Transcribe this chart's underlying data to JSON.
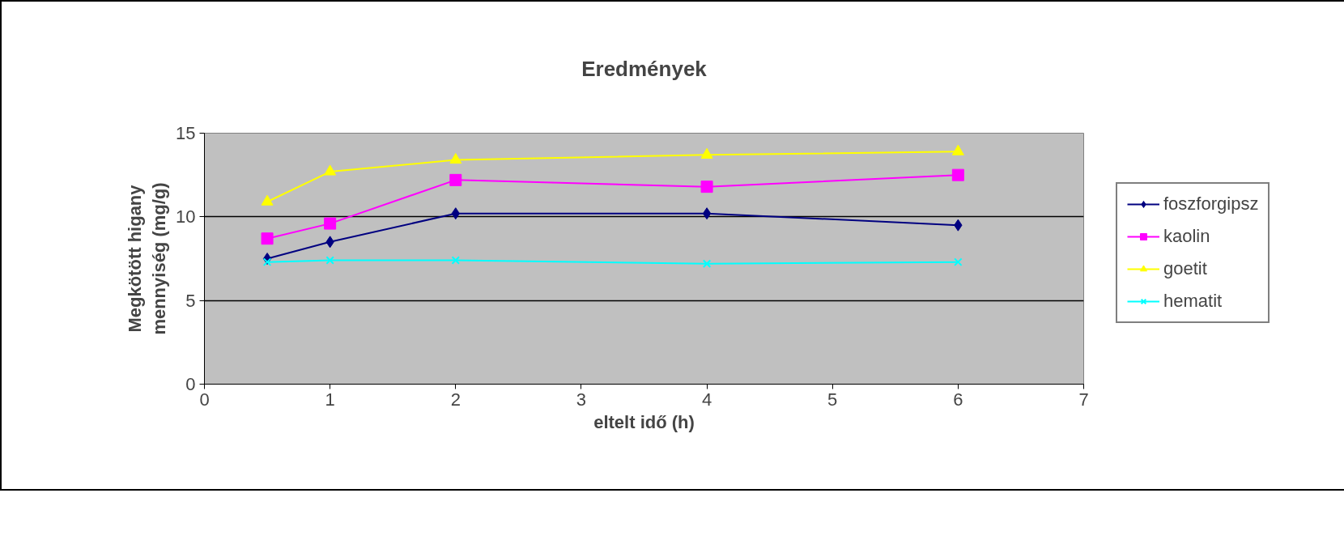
{
  "chart_data": {
    "type": "line",
    "title": "Eredmények",
    "xlabel": "eltelt idő (h)",
    "ylabel": "Megkötött higany\nmennyiség (mg/g)",
    "x": [
      0.5,
      1,
      2,
      4,
      6
    ],
    "series": [
      {
        "name": "foszforgipsz",
        "color": "#000080",
        "marker": "diamond",
        "values": [
          7.5,
          8.5,
          10.2,
          10.2,
          9.5
        ]
      },
      {
        "name": "kaolin",
        "color": "#ff00ff",
        "marker": "square",
        "values": [
          8.7,
          9.6,
          12.2,
          11.8,
          12.5
        ]
      },
      {
        "name": "goetit",
        "color": "#ffff00",
        "marker": "triangle",
        "values": [
          10.9,
          12.7,
          13.4,
          13.7,
          13.9
        ]
      },
      {
        "name": "hematit",
        "color": "#00ffff",
        "marker": "x",
        "values": [
          7.3,
          7.4,
          7.4,
          7.2,
          7.3
        ]
      }
    ],
    "xlim": [
      0,
      7
    ],
    "xticks": [
      0,
      1,
      2,
      3,
      4,
      5,
      6,
      7
    ],
    "ylim": [
      0,
      15
    ],
    "yticks": [
      0,
      5,
      10,
      15
    ],
    "grid": "y",
    "legend": "right"
  }
}
